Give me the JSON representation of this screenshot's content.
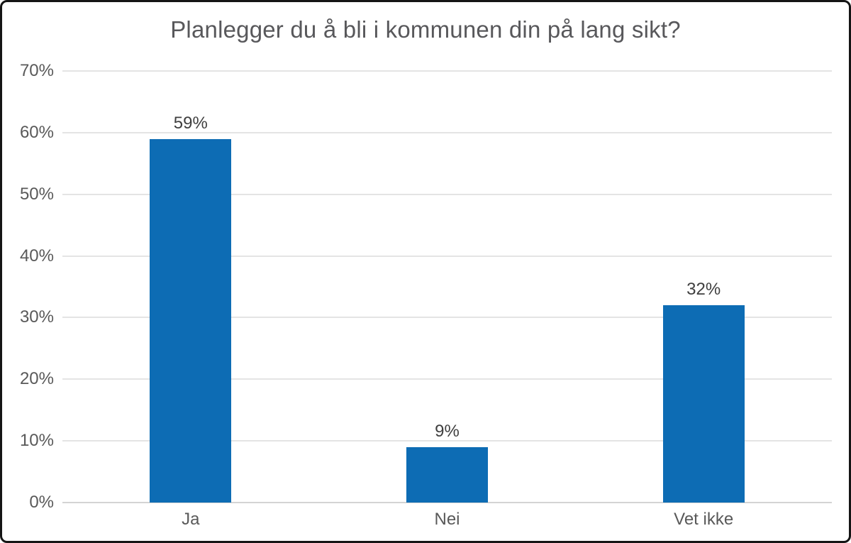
{
  "chart_data": {
    "type": "bar",
    "title": "Planlegger du å bli i kommunen din på lang sikt?",
    "categories": [
      "Ja",
      "Nei",
      "Vet ikke"
    ],
    "values": [
      59,
      9,
      32
    ],
    "value_labels": [
      "59%",
      "9%",
      "32%"
    ],
    "xlabel": "",
    "ylabel": "",
    "ylim": [
      0,
      70
    ],
    "ytick_step": 10,
    "ytick_labels": [
      "0%",
      "10%",
      "20%",
      "30%",
      "40%",
      "50%",
      "60%",
      "70%"
    ],
    "grid": true,
    "legend": "none",
    "colors": {
      "bar": "#0d6cb4",
      "gridline": "#e4e4e4",
      "axis_line": "#d4d4d4",
      "title_text": "#58585b",
      "tick_text": "#595959",
      "value_label_text": "#3f3f3f",
      "frame_border": "#151515",
      "background": "#ffffff"
    }
  }
}
